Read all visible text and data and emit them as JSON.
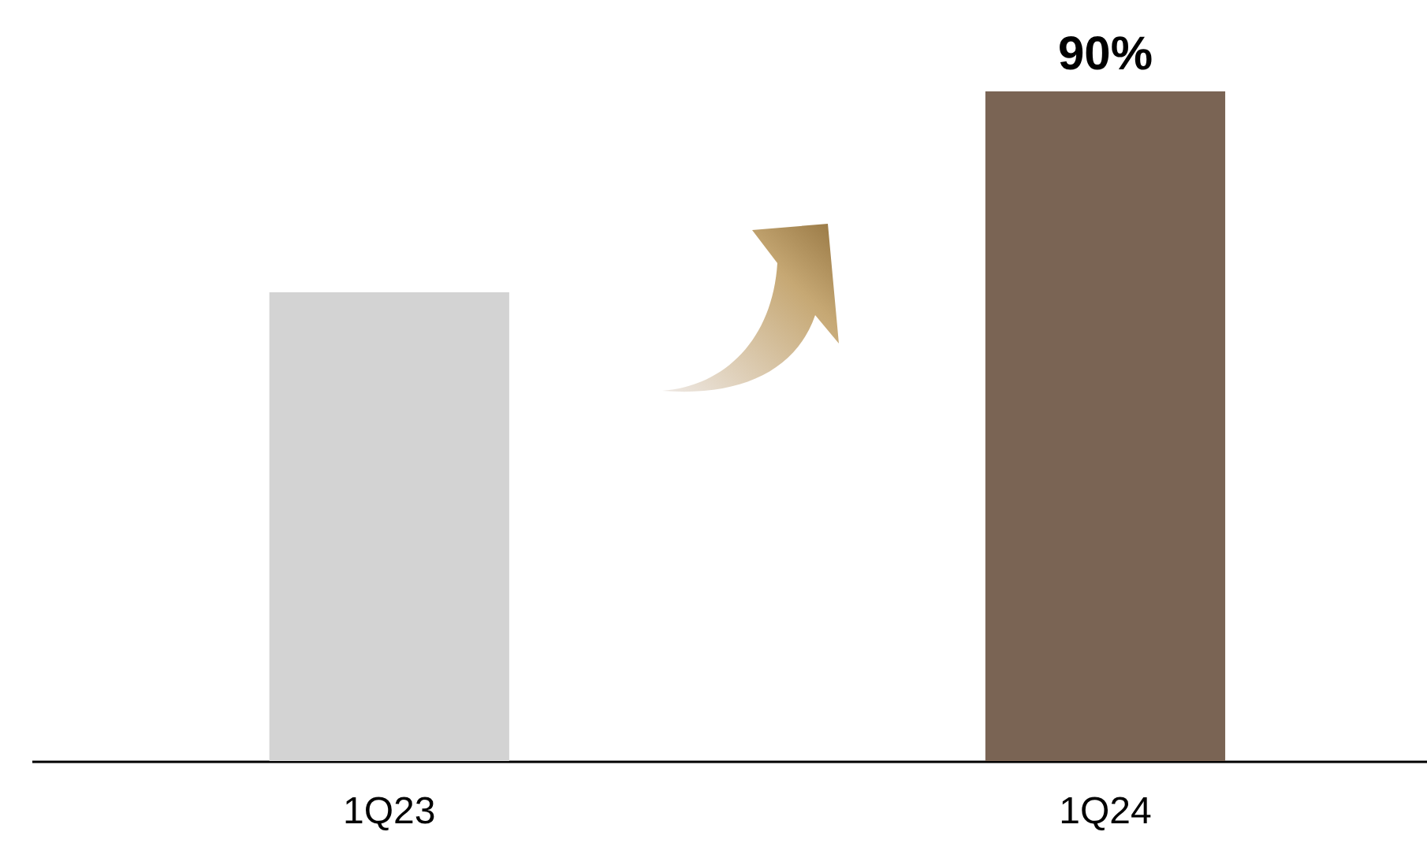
{
  "chart_data": {
    "type": "bar",
    "categories": [
      "1Q23",
      "1Q24"
    ],
    "values": [
      63,
      90
    ],
    "colors": [
      "#d3d3d3",
      "#7a6454"
    ],
    "value_labels": [
      null,
      "90%"
    ]
  }
}
